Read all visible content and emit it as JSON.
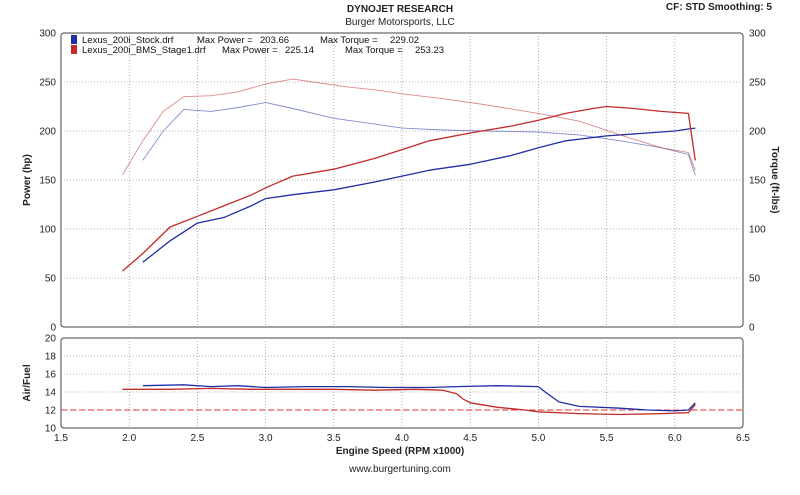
{
  "header": {
    "title": "DYNOJET RESEARCH",
    "subtitle": "Burger Motorsports, LLC",
    "correction": "CF: STD  Smoothing: 5"
  },
  "footer": {
    "url": "www.burgertuning.com"
  },
  "colors": {
    "stock": "#1f2fa8",
    "stage1": "#c32a2a",
    "target": "#e03030",
    "grid": "#9a9a9a"
  },
  "chart_data": [
    {
      "type": "line",
      "xlabel": "Engine Speed (RPM x1000)",
      "ylabel": "Power (hp)",
      "y2label": "Torque (ft-lbs)",
      "xlim": [
        1.5,
        6.5
      ],
      "xticks": [
        "1.5",
        "2.0",
        "2.5",
        "3.0",
        "3.5",
        "4.0",
        "4.5",
        "5.0",
        "5.5",
        "6.0",
        "6.5"
      ],
      "ylim": [
        0,
        300
      ],
      "yticks": [
        "0",
        "50",
        "100",
        "150",
        "200",
        "250",
        "300"
      ],
      "y2ticks": [
        "0",
        "50",
        "100",
        "150",
        "200",
        "250",
        "300"
      ],
      "grid": true,
      "legend": [
        {
          "file": "Lexus_200i_Stock.drf",
          "max_power_label": "Max Power =",
          "max_power": "203.66",
          "max_torque_label": "Max Torque =",
          "max_torque": "229.02"
        },
        {
          "file": "Lexus_200i_BMS_Stage1.drf",
          "max_power_label": "Max Power =",
          "max_power": "225.14",
          "max_torque_label": "Max Torque =",
          "max_torque": "253.23"
        }
      ],
      "series": [
        {
          "name": "Lexus_200i_Stock.drf",
          "quantity": "power",
          "color": "#1f2fa8",
          "x": [
            2.1,
            2.3,
            2.5,
            2.7,
            2.9,
            3.0,
            3.2,
            3.5,
            3.8,
            4.0,
            4.2,
            4.5,
            4.8,
            5.0,
            5.2,
            5.5,
            5.8,
            6.0,
            6.1,
            6.15
          ],
          "y": [
            66,
            88,
            106,
            112,
            124,
            131,
            135,
            140,
            148,
            154,
            160,
            166,
            175,
            183,
            190,
            195,
            198,
            200,
            202,
            203
          ]
        },
        {
          "name": "Lexus_200i_Stock.drf",
          "quantity": "torque",
          "color": "#1f2fa8",
          "x": [
            2.1,
            2.25,
            2.4,
            2.6,
            2.8,
            3.0,
            3.2,
            3.5,
            3.8,
            4.0,
            4.3,
            4.6,
            5.0,
            5.3,
            5.6,
            5.9,
            6.1,
            6.15
          ],
          "y": [
            170,
            200,
            222,
            220,
            224,
            229,
            223,
            213,
            207,
            203,
            201,
            200,
            199,
            196,
            190,
            183,
            176,
            155
          ]
        },
        {
          "name": "Lexus_200i_BMS_Stage1.drf",
          "quantity": "power",
          "color": "#c32a2a",
          "x": [
            1.95,
            2.1,
            2.3,
            2.5,
            2.7,
            2.9,
            3.0,
            3.2,
            3.5,
            3.8,
            4.0,
            4.2,
            4.5,
            4.8,
            5.0,
            5.2,
            5.4,
            5.5,
            5.7,
            5.9,
            6.1,
            6.15
          ],
          "y": [
            57,
            75,
            102,
            113,
            124,
            135,
            142,
            154,
            161,
            172,
            181,
            190,
            198,
            205,
            211,
            218,
            223,
            225,
            223,
            220,
            218,
            170
          ]
        },
        {
          "name": "Lexus_200i_BMS_Stage1.drf",
          "quantity": "torque",
          "color": "#c32a2a",
          "x": [
            1.95,
            2.1,
            2.25,
            2.4,
            2.6,
            2.8,
            3.0,
            3.2,
            3.4,
            3.6,
            3.8,
            4.0,
            4.3,
            4.6,
            5.0,
            5.3,
            5.6,
            5.9,
            6.1,
            6.15
          ],
          "y": [
            155,
            190,
            220,
            235,
            236,
            240,
            248,
            253,
            249,
            245,
            242,
            238,
            233,
            227,
            218,
            210,
            196,
            183,
            178,
            160
          ]
        }
      ]
    },
    {
      "type": "line",
      "xlabel": "Engine Speed (RPM x1000)",
      "ylabel": "Air/Fuel",
      "xlim": [
        1.5,
        6.5
      ],
      "ylim": [
        10,
        20
      ],
      "yticks": [
        "10",
        "12",
        "14",
        "16",
        "18",
        "20"
      ],
      "grid": true,
      "target_afr": 12.0,
      "series": [
        {
          "name": "Lexus_200i_Stock.drf",
          "quantity": "air/fuel",
          "color": "#1f2fa8",
          "x": [
            2.1,
            2.4,
            2.6,
            2.8,
            3.0,
            3.3,
            3.6,
            3.9,
            4.2,
            4.4,
            4.7,
            5.0,
            5.05,
            5.15,
            5.3,
            5.6,
            5.8,
            6.0,
            6.1,
            6.15
          ],
          "y": [
            14.7,
            14.8,
            14.6,
            14.7,
            14.5,
            14.6,
            14.6,
            14.5,
            14.5,
            14.6,
            14.7,
            14.6,
            14.0,
            12.9,
            12.4,
            12.2,
            12.0,
            11.9,
            12.0,
            12.8
          ]
        },
        {
          "name": "Lexus_200i_BMS_Stage1.drf",
          "quantity": "air/fuel",
          "color": "#c32a2a",
          "x": [
            1.95,
            2.3,
            2.6,
            2.9,
            3.2,
            3.5,
            3.8,
            4.1,
            4.3,
            4.4,
            4.45,
            4.5,
            4.7,
            4.9,
            5.0,
            5.3,
            5.6,
            5.9,
            6.1,
            6.15
          ],
          "y": [
            14.3,
            14.3,
            14.4,
            14.3,
            14.3,
            14.3,
            14.2,
            14.3,
            14.2,
            13.8,
            13.2,
            12.8,
            12.3,
            12.0,
            11.8,
            11.6,
            11.5,
            11.6,
            11.7,
            12.6
          ]
        }
      ]
    }
  ]
}
